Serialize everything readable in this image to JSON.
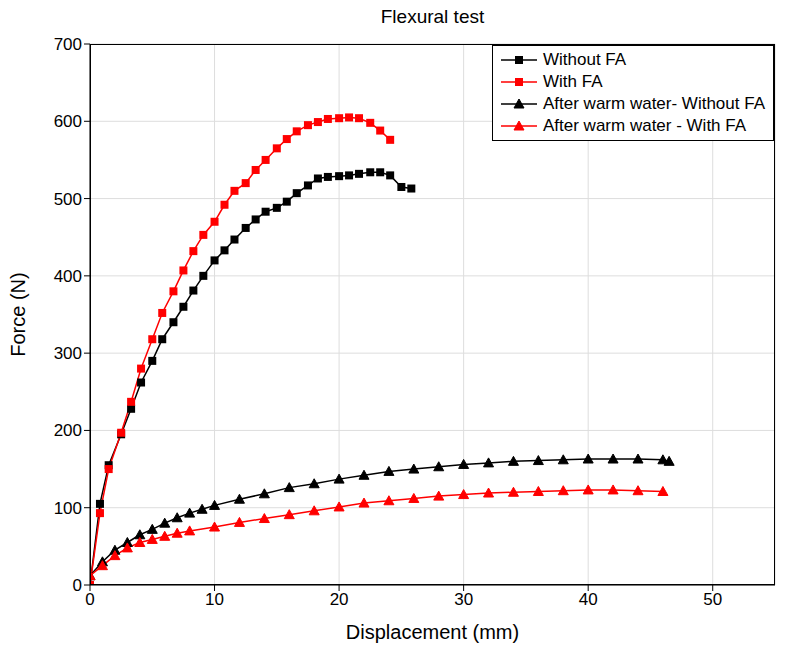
{
  "chart_data": {
    "type": "line",
    "title": "Flexural test",
    "x_label": "Displacement (mm)",
    "y_label": "Force (N)",
    "xlim": [
      0,
      55
    ],
    "xticks": [
      0,
      10,
      20,
      30,
      40,
      50
    ],
    "ylim": [
      0,
      700
    ],
    "yticks": [
      0,
      100,
      200,
      300,
      400,
      500,
      600,
      700
    ],
    "grid": true,
    "legend": "upper right",
    "series": [
      {
        "name": "Without FA",
        "color": "#000000",
        "marker": "square",
        "x": [
          0,
          0.8,
          1.5,
          2.5,
          3.3,
          4.1,
          5,
          5.8,
          6.7,
          7.5,
          8.3,
          9.1,
          10,
          10.8,
          11.6,
          12.5,
          13.3,
          14.1,
          15,
          15.8,
          16.6,
          17.5,
          18.3,
          19.1,
          20,
          20.8,
          21.6,
          22.5,
          23.3,
          24.1,
          25,
          25.8
        ],
        "values": [
          0,
          105,
          155,
          195,
          228,
          262,
          290,
          318,
          340,
          360,
          381,
          400,
          420,
          433,
          447,
          462,
          473,
          483,
          488,
          496,
          507,
          517,
          526,
          528,
          529,
          530,
          532,
          534,
          534,
          530,
          515,
          513
        ]
      },
      {
        "name": "With FA",
        "color": "#ff0000",
        "marker": "square",
        "x": [
          0,
          0.8,
          1.5,
          2.5,
          3.3,
          4.1,
          5,
          5.8,
          6.7,
          7.5,
          8.3,
          9.1,
          10,
          10.8,
          11.6,
          12.5,
          13.3,
          14.1,
          15,
          15.8,
          16.6,
          17.5,
          18.3,
          19.1,
          20,
          20.8,
          21.6,
          22.5,
          23.3,
          24.1
        ],
        "values": [
          0,
          93,
          150,
          197,
          237,
          280,
          318,
          352,
          380,
          407,
          432,
          453,
          470,
          492,
          510,
          520,
          537,
          550,
          565,
          577,
          587,
          595,
          599,
          603,
          604,
          605,
          604,
          598,
          588,
          576
        ]
      },
      {
        "name": "After warm water- Without FA",
        "color": "#000000",
        "marker": "triangle",
        "x": [
          0,
          1,
          2,
          3,
          4,
          5,
          6,
          7,
          8,
          9,
          10,
          12,
          14,
          16,
          18,
          20,
          22,
          24,
          26,
          28,
          30,
          32,
          34,
          36,
          38,
          40,
          42,
          44,
          46,
          46.5
        ],
        "values": [
          12,
          30,
          45,
          55,
          65,
          72,
          80,
          87,
          93,
          98,
          103,
          111,
          118,
          126,
          131,
          137,
          142,
          147,
          150,
          153,
          156,
          158,
          160,
          161,
          162,
          163,
          163,
          163,
          162,
          160
        ]
      },
      {
        "name": "After warm water - With FA",
        "color": "#ff0000",
        "marker": "triangle",
        "x": [
          0,
          1,
          2,
          3,
          4,
          5,
          6,
          7,
          8,
          10,
          12,
          14,
          16,
          18,
          20,
          22,
          24,
          26,
          28,
          30,
          32,
          34,
          36,
          38,
          40,
          42,
          44,
          46
        ],
        "values": [
          12,
          25,
          38,
          48,
          55,
          59,
          63,
          67,
          70,
          75,
          81,
          86,
          91,
          96,
          101,
          106,
          109,
          112,
          115,
          117,
          119,
          120,
          121,
          122,
          123,
          123,
          122,
          121
        ]
      }
    ]
  }
}
